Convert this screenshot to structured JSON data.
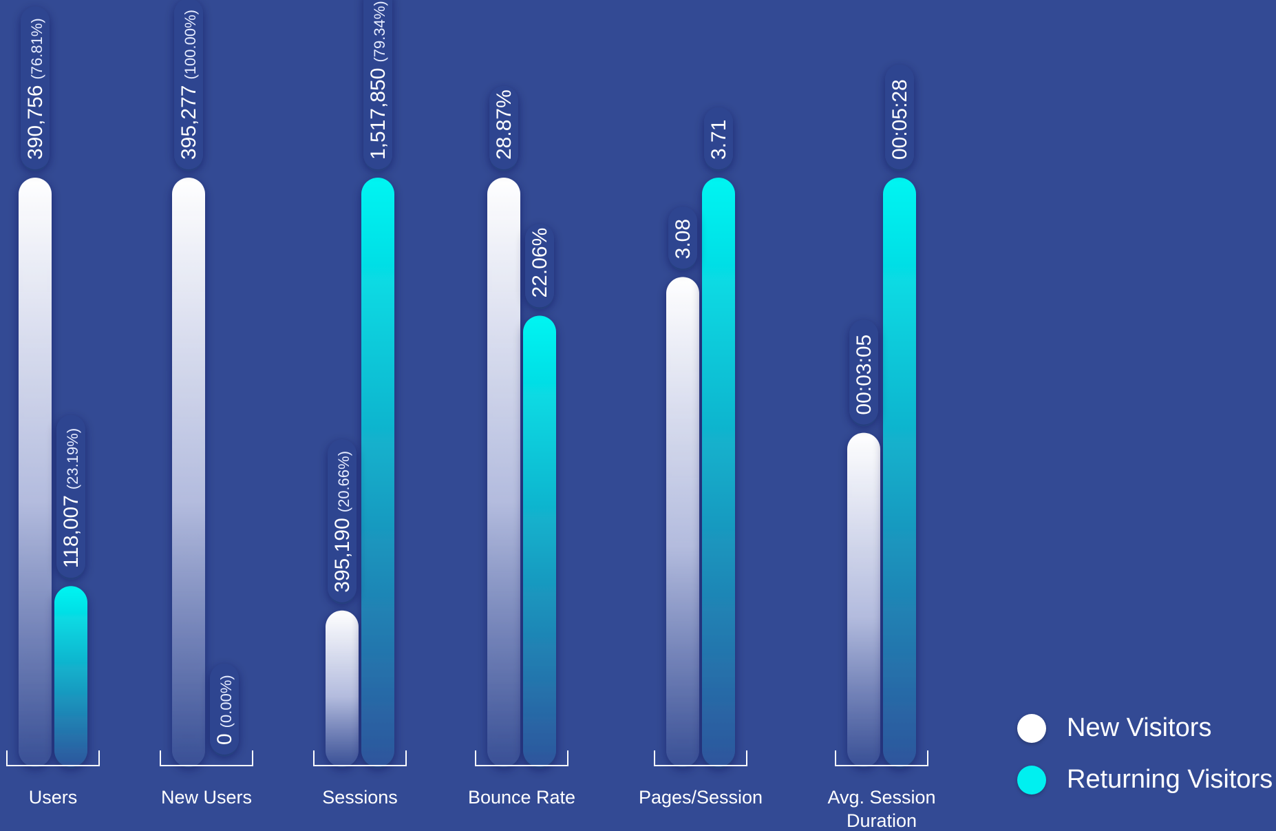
{
  "chart_data": {
    "type": "bar",
    "orientation": "vertical",
    "categories": [
      "Users",
      "New Users",
      "Sessions",
      "Bounce Rate",
      "Pages/Session",
      "Avg. Session Duration"
    ],
    "series": [
      {
        "name": "New Visitors",
        "color": "#ffffff",
        "values": [
          390756,
          395277,
          395190,
          28.87,
          3.08,
          185
        ],
        "labels": [
          "390,756",
          "395,277",
          "395,190",
          "28.87%",
          "3.08",
          "00:03:05"
        ],
        "share_labels": [
          "(76.81%)",
          "(100.00%)",
          "(20.66%)",
          "",
          "",
          ""
        ]
      },
      {
        "name": "Returning Visitors",
        "color": "#00f0f0",
        "values": [
          118007,
          0,
          1517850,
          22.06,
          3.71,
          328
        ],
        "labels": [
          "118,007",
          "0",
          "1,517,850",
          "22.06%",
          "3.71",
          "00:05:28"
        ],
        "share_labels": [
          "(23.19%)",
          "(0.00%)",
          "(79.34%)",
          "",
          "",
          ""
        ]
      }
    ],
    "legend": {
      "placement": "bottom-right",
      "entries": [
        "New Visitors",
        "Returning Visitors"
      ]
    },
    "grid": false,
    "title": "",
    "xlabel": "",
    "ylabel": ""
  }
}
